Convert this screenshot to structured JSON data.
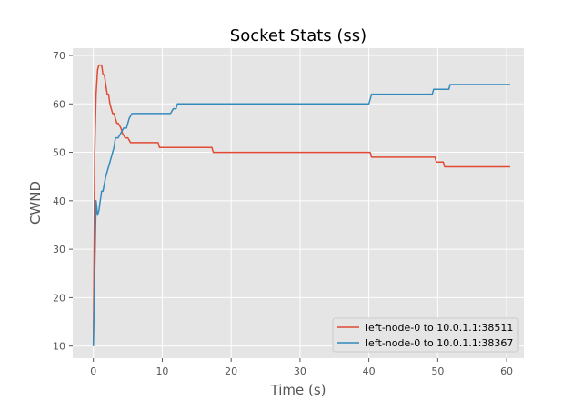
{
  "chart_data": {
    "type": "line",
    "title": "Socket Stats (ss)",
    "xlabel": "Time (s)",
    "ylabel": "CWND",
    "xlim": [
      -3,
      62.5
    ],
    "ylim": [
      7.5,
      71.5
    ],
    "xticks": [
      0,
      10,
      20,
      30,
      40,
      50,
      60
    ],
    "yticks": [
      10,
      20,
      30,
      40,
      50,
      60,
      70
    ],
    "grid": true,
    "legend_position": "lower-right",
    "colors": {
      "background": "#e5e5e5",
      "grid": "#ffffff"
    },
    "series": [
      {
        "name": "left-node-0 to 10.0.1.1:38511",
        "color": "#e24a33",
        "x": [
          0,
          0.2,
          0.4,
          0.6,
          0.8,
          1.0,
          1.2,
          1.4,
          1.6,
          1.8,
          2.0,
          2.2,
          2.4,
          2.6,
          2.8,
          3.0,
          3.4,
          3.6,
          4.0,
          4.2,
          4.6,
          5.0,
          5.4,
          5.6,
          9.4,
          9.6,
          17.2,
          17.4,
          40.2,
          40.4,
          49.6,
          49.8,
          50.8,
          51.0,
          60.5
        ],
        "y": [
          10,
          50,
          62,
          67,
          68,
          68,
          68,
          66,
          66,
          64,
          62,
          62,
          60,
          59,
          58,
          58,
          56,
          56,
          55,
          54,
          53,
          53,
          52,
          52,
          52,
          51,
          51,
          50,
          50,
          49,
          49,
          48,
          48,
          47,
          47
        ]
      },
      {
        "name": "left-node-0 to 10.0.1.1:38367",
        "color": "#348abd",
        "x": [
          0,
          0.2,
          0.4,
          0.6,
          0.8,
          1.0,
          1.2,
          1.4,
          1.8,
          2.2,
          2.6,
          3.0,
          3.2,
          3.6,
          4.0,
          4.4,
          4.8,
          5.2,
          5.6,
          11.2,
          11.6,
          12.0,
          12.2,
          40.0,
          40.4,
          49.2,
          49.4,
          51.6,
          51.8,
          60.5
        ],
        "y": [
          10,
          25,
          40,
          37,
          38,
          40,
          42,
          42,
          45,
          47,
          49,
          51,
          53,
          53,
          54,
          55,
          55,
          57,
          58,
          58,
          59,
          59,
          60,
          60,
          62,
          62,
          63,
          63,
          64,
          64
        ]
      }
    ]
  }
}
